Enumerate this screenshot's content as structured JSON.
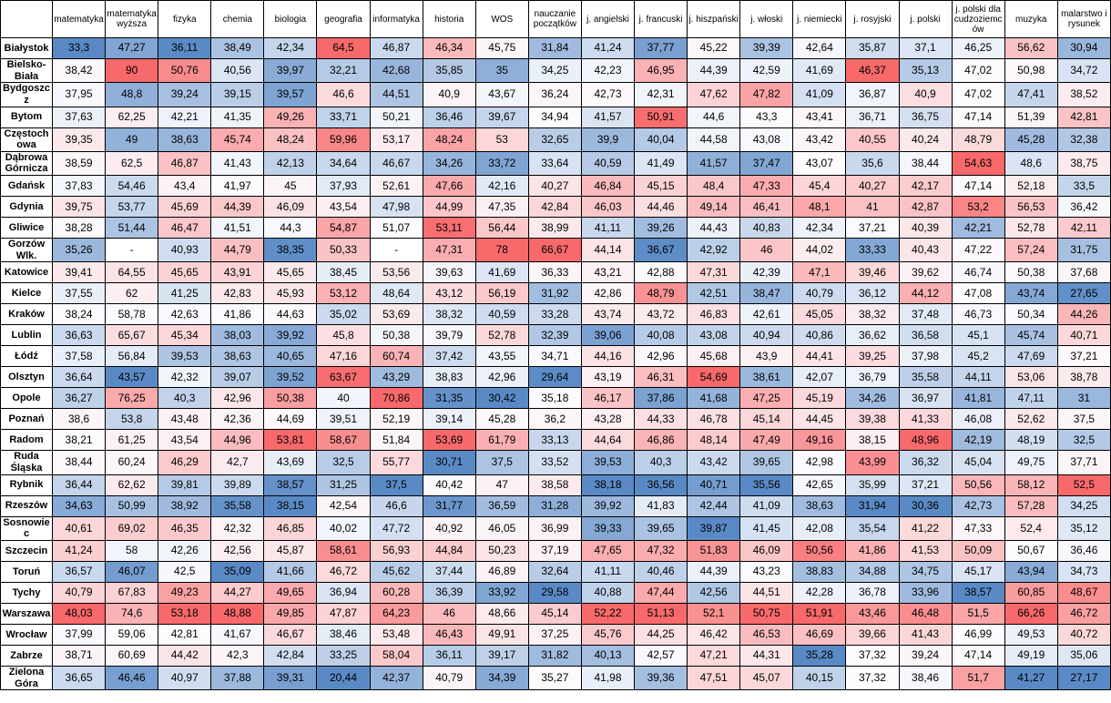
{
  "chart_data": {
    "type": "heatmap",
    "corner_label": "",
    "missing_marker": "-",
    "columns": [
      "matematyka",
      "matematyka wyższa",
      "fizyka",
      "chemia",
      "biologia",
      "geografia",
      "informatyka",
      "historia",
      "WOS",
      "nauczanie początków",
      "j. angielski",
      "j. francuski",
      "j. hiszpański",
      "j. włoski",
      "j. niemiecki",
      "j. rosyjski",
      "j. polski",
      "j. polski dla cudzoziemców",
      "muzyka",
      "malarstwo i rysunek"
    ],
    "rows": [
      "Białystok",
      "Bielsko-Biała",
      "Bydgoszcz",
      "Bytom",
      "Częstochowa",
      "Dąbrowa Górnicza",
      "Gdańsk",
      "Gdynia",
      "Gliwice",
      "Gorzów Wlk.",
      "Katowice",
      "Kielce",
      "Kraków",
      "Lublin",
      "Łódź",
      "Olsztyn",
      "Opole",
      "Poznań",
      "Radom",
      "Ruda Śląska",
      "Rybnik",
      "Rzeszów",
      "Sosnowiec",
      "Szczecin",
      "Toruń",
      "Tychy",
      "Warszawa",
      "Wrocław",
      "Zabrze",
      "Zielona Góra"
    ],
    "values": [
      [
        "33,3",
        "47,27",
        "36,11",
        "38,49",
        "42,34",
        "64,5",
        "46,87",
        "46,34",
        "45,75",
        "31,84",
        "41,24",
        "37,77",
        "45,22",
        "39,39",
        "42,64",
        "35,87",
        "37,1",
        "46,25",
        "56,62",
        "30,94"
      ],
      [
        "38,42",
        "90",
        "50,76",
        "40,56",
        "39,97",
        "32,21",
        "42,68",
        "35,85",
        "35",
        "34,25",
        "42,23",
        "46,95",
        "44,39",
        "42,59",
        "41,69",
        "46,37",
        "35,13",
        "47,02",
        "50,98",
        "34,72"
      ],
      [
        "37,95",
        "48,8",
        "39,24",
        "39,15",
        "39,57",
        "46,6",
        "44,51",
        "40,9",
        "43,67",
        "36,24",
        "42,73",
        "42,31",
        "47,62",
        "47,82",
        "41,09",
        "36,87",
        "40,9",
        "47,02",
        "47,41",
        "38,52"
      ],
      [
        "37,63",
        "62,25",
        "42,21",
        "41,35",
        "49,26",
        "33,71",
        "50,21",
        "36,46",
        "39,67",
        "34,94",
        "41,57",
        "50,91",
        "44,6",
        "43,3",
        "43,41",
        "36,71",
        "36,75",
        "47,14",
        "51,39",
        "42,81"
      ],
      [
        "39,35",
        "49",
        "38,63",
        "45,74",
        "48,24",
        "59,96",
        "53,17",
        "48,24",
        "53",
        "32,65",
        "39,9",
        "40,04",
        "44,58",
        "43,08",
        "43,42",
        "40,55",
        "40,24",
        "48,79",
        "45,28",
        "32,38"
      ],
      [
        "38,59",
        "62,5",
        "46,87",
        "41,43",
        "42,13",
        "34,64",
        "46,67",
        "34,26",
        "33,72",
        "33,64",
        "40,59",
        "41,49",
        "41,57",
        "37,47",
        "43,07",
        "35,6",
        "38,44",
        "54,63",
        "48,6",
        "38,75"
      ],
      [
        "37,83",
        "54,46",
        "43,4",
        "41,97",
        "45",
        "37,93",
        "52,61",
        "47,66",
        "42,16",
        "40,27",
        "46,84",
        "45,15",
        "48,4",
        "47,33",
        "45,4",
        "40,27",
        "42,17",
        "47,14",
        "52,18",
        "33,5"
      ],
      [
        "39,75",
        "53,77",
        "45,69",
        "44,39",
        "46,09",
        "43,54",
        "47,98",
        "44,99",
        "47,35",
        "42,84",
        "46,03",
        "44,46",
        "49,14",
        "46,41",
        "48,1",
        "41",
        "42,87",
        "53,2",
        "56,53",
        "36,42"
      ],
      [
        "38,28",
        "51,44",
        "46,47",
        "41,51",
        "44,3",
        "54,87",
        "51,07",
        "53,11",
        "56,44",
        "38,99",
        "41,11",
        "39,26",
        "44,43",
        "40,83",
        "42,34",
        "37,21",
        "40,39",
        "42,21",
        "52,78",
        "42,11"
      ],
      [
        "35,26",
        "-",
        "40,93",
        "44,79",
        "38,35",
        "50,33",
        "-",
        "47,31",
        "78",
        "66,67",
        "44,14",
        "36,67",
        "42,92",
        "46",
        "44,02",
        "33,33",
        "40,43",
        "47,22",
        "57,24",
        "31,75"
      ],
      [
        "39,41",
        "64,55",
        "45,65",
        "43,91",
        "45,65",
        "38,45",
        "53,56",
        "39,63",
        "41,69",
        "36,33",
        "43,21",
        "42,88",
        "47,31",
        "42,39",
        "47,1",
        "39,46",
        "39,62",
        "46,74",
        "50,38",
        "37,68"
      ],
      [
        "37,55",
        "62",
        "41,25",
        "42,83",
        "45,93",
        "53,12",
        "48,64",
        "43,12",
        "56,19",
        "31,92",
        "42,86",
        "48,79",
        "42,51",
        "38,47",
        "40,79",
        "36,12",
        "44,12",
        "47,08",
        "43,74",
        "27,65"
      ],
      [
        "38,24",
        "58,78",
        "42,63",
        "41,86",
        "44,63",
        "35,02",
        "53,69",
        "38,32",
        "40,59",
        "33,28",
        "43,74",
        "43,72",
        "46,83",
        "42,61",
        "45,05",
        "38,32",
        "37,48",
        "46,73",
        "50,34",
        "44,26"
      ],
      [
        "36,63",
        "65,67",
        "45,34",
        "38,03",
        "39,92",
        "45,8",
        "50,38",
        "39,79",
        "52,78",
        "32,39",
        "39,06",
        "40,08",
        "43,08",
        "40,94",
        "40,86",
        "36,62",
        "36,58",
        "45,1",
        "45,74",
        "40,71"
      ],
      [
        "37,58",
        "56,84",
        "39,53",
        "38,63",
        "40,65",
        "47,16",
        "60,74",
        "37,42",
        "43,55",
        "34,71",
        "44,16",
        "42,96",
        "45,68",
        "43,9",
        "44,41",
        "39,25",
        "37,98",
        "45,2",
        "47,69",
        "37,21"
      ],
      [
        "36,64",
        "43,57",
        "42,32",
        "39,07",
        "39,52",
        "63,67",
        "43,29",
        "38,83",
        "42,96",
        "29,64",
        "43,19",
        "46,31",
        "54,69",
        "38,61",
        "42,07",
        "36,79",
        "35,58",
        "44,11",
        "53,06",
        "38,78"
      ],
      [
        "36,27",
        "76,25",
        "40,3",
        "42,96",
        "50,38",
        "40",
        "70,86",
        "31,35",
        "30,42",
        "35,18",
        "46,17",
        "37,86",
        "41,68",
        "47,25",
        "45,19",
        "34,26",
        "36,97",
        "41,81",
        "47,11",
        "31"
      ],
      [
        "38,6",
        "53,8",
        "43,48",
        "42,36",
        "44,69",
        "39,51",
        "52,19",
        "39,14",
        "45,28",
        "36,2",
        "43,28",
        "44,33",
        "46,78",
        "45,14",
        "44,45",
        "39,38",
        "41,33",
        "46,08",
        "52,62",
        "37,5"
      ],
      [
        "38,21",
        "61,25",
        "43,54",
        "44,96",
        "53,81",
        "58,67",
        "51,84",
        "53,69",
        "61,79",
        "33,13",
        "44,64",
        "46,86",
        "48,14",
        "47,49",
        "49,16",
        "38,15",
        "48,96",
        "42,19",
        "48,19",
        "32,5"
      ],
      [
        "38,44",
        "60,24",
        "46,29",
        "42,7",
        "43,69",
        "32,5",
        "55,77",
        "30,71",
        "37,5",
        "33,52",
        "39,53",
        "40,3",
        "43,42",
        "39,65",
        "42,98",
        "43,99",
        "36,32",
        "45,04",
        "49,75",
        "37,71"
      ],
      [
        "36,44",
        "62,62",
        "39,81",
        "39,89",
        "38,57",
        "31,25",
        "37,5",
        "40,42",
        "47",
        "38,58",
        "38,18",
        "36,56",
        "40,71",
        "35,56",
        "42,65",
        "35,99",
        "37,21",
        "50,56",
        "58,12",
        "52,5"
      ],
      [
        "34,63",
        "50,99",
        "38,92",
        "35,58",
        "38,15",
        "42,54",
        "46,6",
        "31,77",
        "36,59",
        "31,28",
        "39,92",
        "41,83",
        "42,44",
        "41,09",
        "38,63",
        "31,94",
        "30,36",
        "42,73",
        "57,28",
        "34,25"
      ],
      [
        "40,61",
        "69,02",
        "46,35",
        "42,32",
        "46,85",
        "40,02",
        "47,72",
        "40,92",
        "46,05",
        "36,99",
        "39,33",
        "39,65",
        "39,87",
        "41,45",
        "42,08",
        "35,54",
        "41,22",
        "47,33",
        "52,4",
        "35,12"
      ],
      [
        "41,24",
        "58",
        "42,26",
        "42,56",
        "45,87",
        "58,61",
        "56,93",
        "44,84",
        "50,23",
        "37,19",
        "47,65",
        "47,32",
        "51,83",
        "46,09",
        "50,56",
        "41,86",
        "41,53",
        "50,09",
        "50,67",
        "36,46"
      ],
      [
        "36,57",
        "46,07",
        "42,5",
        "35,09",
        "41,66",
        "46,72",
        "45,62",
        "37,44",
        "46,89",
        "32,64",
        "41,11",
        "40,46",
        "44,39",
        "43,23",
        "38,83",
        "34,88",
        "34,75",
        "45,17",
        "43,94",
        "34,73"
      ],
      [
        "40,79",
        "67,83",
        "49,23",
        "44,27",
        "49,65",
        "36,94",
        "60,28",
        "36,39",
        "33,92",
        "29,58",
        "40,88",
        "47,44",
        "42,56",
        "44,51",
        "42,28",
        "36,78",
        "33,96",
        "38,57",
        "60,85",
        "48,67"
      ],
      [
        "48,03",
        "74,6",
        "53,18",
        "48,88",
        "49,85",
        "47,87",
        "64,23",
        "46",
        "48,66",
        "45,14",
        "52,22",
        "51,13",
        "52,1",
        "50,75",
        "51,91",
        "43,46",
        "46,48",
        "51,5",
        "66,26",
        "46,72"
      ],
      [
        "37,99",
        "59,06",
        "42,81",
        "41,67",
        "46,67",
        "38,46",
        "53,48",
        "46,43",
        "49,91",
        "37,25",
        "45,76",
        "44,25",
        "46,42",
        "46,53",
        "46,69",
        "39,66",
        "41,43",
        "46,99",
        "49,53",
        "40,72"
      ],
      [
        "38,71",
        "60,69",
        "44,42",
        "42,3",
        "42,84",
        "33,25",
        "58,04",
        "36,11",
        "39,17",
        "31,82",
        "40,13",
        "42,57",
        "47,21",
        "44,31",
        "35,28",
        "37,32",
        "39,24",
        "47,14",
        "49,19",
        "35,06"
      ],
      [
        "36,65",
        "46,46",
        "40,97",
        "37,88",
        "39,31",
        "20,44",
        "42,37",
        "40,79",
        "34,39",
        "35,27",
        "41,98",
        "39,36",
        "47,51",
        "45,07",
        "40,15",
        "37,32",
        "38,46",
        "51,7",
        "41,27",
        "27,17"
      ]
    ],
    "colorscale": {
      "low_color": "#5A8AC6",
      "mid_color": "#FCFCFF",
      "high_color": "#F8696B",
      "missing_color": "#FFFFFF",
      "grid_color": "#000000",
      "mapping": "per-column diverging scale: column min = blue, column median = white, column max = red"
    }
  }
}
